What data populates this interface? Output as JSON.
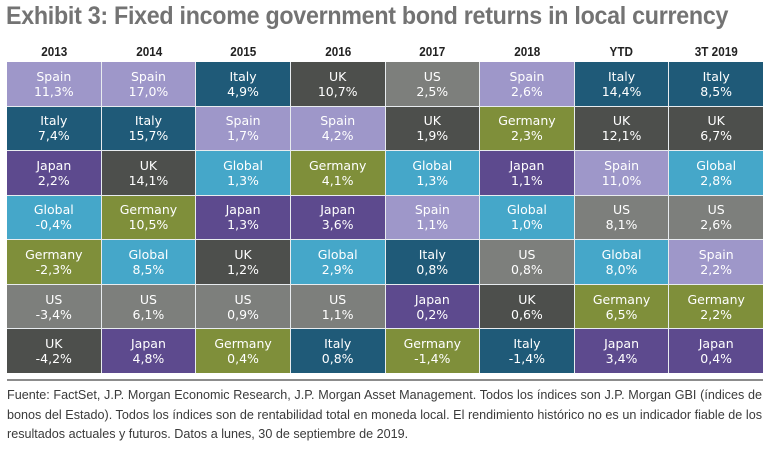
{
  "title": "Exhibit 3: Fixed income government bond returns in local currency",
  "colors": {
    "Spain": "#9e97c9",
    "Italy": "#1f5a78",
    "Japan": "#5d4a8e",
    "UK": "#4d4f4c",
    "Global": "#45a7c9",
    "Germany": "#7f8f3a",
    "US": "#7d7f7c"
  },
  "chart_data": {
    "type": "table",
    "title": "Exhibit 3: Fixed income government bond returns in local currency",
    "columns": [
      "2013",
      "2014",
      "2015",
      "2016",
      "2017",
      "2018",
      "YTD",
      "3T 2019"
    ],
    "ranking": [
      [
        {
          "name": "Spain",
          "value": "11,3%"
        },
        {
          "name": "Italy",
          "value": "7,4%"
        },
        {
          "name": "Japan",
          "value": "2,2%"
        },
        {
          "name": "Global",
          "value": "-0,4%"
        },
        {
          "name": "Germany",
          "value": "-2,3%"
        },
        {
          "name": "US",
          "value": "-3,4%"
        },
        {
          "name": "UK",
          "value": "-4,2%"
        }
      ],
      [
        {
          "name": "Spain",
          "value": "17,0%"
        },
        {
          "name": "Italy",
          "value": "15,7%"
        },
        {
          "name": "UK",
          "value": "14,1%"
        },
        {
          "name": "Germany",
          "value": "10,5%"
        },
        {
          "name": "Global",
          "value": "8,5%"
        },
        {
          "name": "US",
          "value": "6,1%"
        },
        {
          "name": "Japan",
          "value": "4,8%"
        }
      ],
      [
        {
          "name": "Italy",
          "value": "4,9%"
        },
        {
          "name": "Spain",
          "value": "1,7%"
        },
        {
          "name": "Global",
          "value": "1,3%"
        },
        {
          "name": "Japan",
          "value": "1,3%"
        },
        {
          "name": "UK",
          "value": "1,2%"
        },
        {
          "name": "US",
          "value": "0,9%"
        },
        {
          "name": "Germany",
          "value": "0,4%"
        }
      ],
      [
        {
          "name": "UK",
          "value": "10,7%"
        },
        {
          "name": "Spain",
          "value": "4,2%"
        },
        {
          "name": "Germany",
          "value": "4,1%"
        },
        {
          "name": "Japan",
          "value": "3,6%"
        },
        {
          "name": "Global",
          "value": "2,9%"
        },
        {
          "name": "US",
          "value": "1,1%"
        },
        {
          "name": "Italy",
          "value": "0,8%"
        }
      ],
      [
        {
          "name": "US",
          "value": "2,5%"
        },
        {
          "name": "UK",
          "value": "1,9%"
        },
        {
          "name": "Global",
          "value": "1,3%"
        },
        {
          "name": "Spain",
          "value": "1,1%"
        },
        {
          "name": "Italy",
          "value": "0,8%"
        },
        {
          "name": "Japan",
          "value": "0,2%"
        },
        {
          "name": "Germany",
          "value": "-1,4%"
        }
      ],
      [
        {
          "name": "Spain",
          "value": "2,6%"
        },
        {
          "name": "Germany",
          "value": "2,3%"
        },
        {
          "name": "Japan",
          "value": "1,1%"
        },
        {
          "name": "Global",
          "value": "1,0%"
        },
        {
          "name": "US",
          "value": "0,8%"
        },
        {
          "name": "UK",
          "value": "0,6%"
        },
        {
          "name": "Italy",
          "value": "-1,4%"
        }
      ],
      [
        {
          "name": "Italy",
          "value": "14,4%"
        },
        {
          "name": "UK",
          "value": "12,1%"
        },
        {
          "name": "Spain",
          "value": "11,0%"
        },
        {
          "name": "US",
          "value": "8,1%"
        },
        {
          "name": "Global",
          "value": "8,0%"
        },
        {
          "name": "Germany",
          "value": "6,5%"
        },
        {
          "name": "Japan",
          "value": "3,4%"
        }
      ],
      [
        {
          "name": "Italy",
          "value": "8,5%"
        },
        {
          "name": "UK",
          "value": "6,7%"
        },
        {
          "name": "Global",
          "value": "2,8%"
        },
        {
          "name": "US",
          "value": "2,6%"
        },
        {
          "name": "Spain",
          "value": "2,2%"
        },
        {
          "name": "Germany",
          "value": "2,2%"
        },
        {
          "name": "Japan",
          "value": "0,4%"
        }
      ]
    ]
  },
  "footnote": "Fuente: FactSet, J.P. Morgan Economic Research, J.P. Morgan Asset Management. Todos los índices son J.P. Morgan GBI (índices de bonos del Estado). Todos los índices son de rentabilidad total en moneda local. El rendimiento histórico no es un indicador fiable de los resultados actuales y futuros. Datos a lunes, 30 de septiembre de 2019."
}
